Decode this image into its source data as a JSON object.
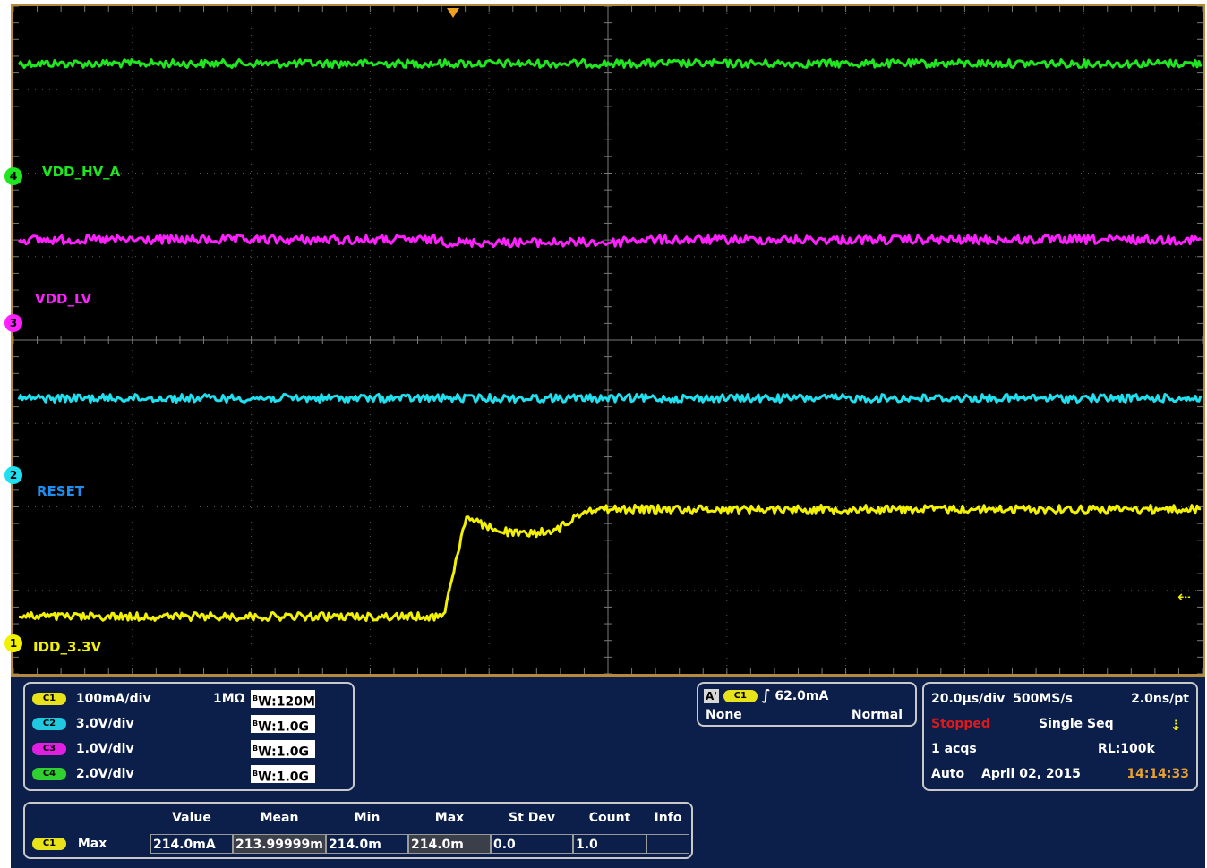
{
  "colors": {
    "ch1": "#f2f200",
    "ch2": "#20e0f0",
    "ch3": "#ff20ff",
    "ch4": "#20e620",
    "frame": "#b58a3c",
    "stopped": "#e01818",
    "time": "#e8a030"
  },
  "channels": [
    {
      "id": "C1",
      "pill": "C1",
      "label": "IDD_3.3V",
      "marker": "1",
      "scale": "100mA/div",
      "coupling": "1MΩ",
      "bw": "W:120M",
      "bw_prefix": "B",
      "color": "#f2f200"
    },
    {
      "id": "C2",
      "pill": "C2",
      "label": "RESET",
      "marker": "2",
      "scale": "3.0V/div",
      "coupling": "",
      "bw": "W:1.0G",
      "bw_prefix": "B",
      "color": "#20e0f0"
    },
    {
      "id": "C3",
      "pill": "C3",
      "label": "VDD_LV",
      "marker": "3",
      "scale": "1.0V/div",
      "coupling": "",
      "bw": "W:1.0G",
      "bw_prefix": "B",
      "color": "#ff20ff"
    },
    {
      "id": "C4",
      "pill": "C4",
      "label": "VDD_HV_A",
      "marker": "4",
      "scale": "2.0V/div",
      "coupling": "",
      "bw": "W:1.0G",
      "bw_prefix": "B",
      "color": "#20e620"
    }
  ],
  "trigger": {
    "source_badge": "A'",
    "channel": "C1",
    "level": "62.0mA",
    "mode_left": "None",
    "mode_right": "Normal"
  },
  "acquisition": {
    "timebase": "20.0µs/div",
    "sample_rate": "500MS/s",
    "resolution": "2.0ns/pt",
    "state": "Stopped",
    "mode": "Single Seq",
    "acqs": "1 acqs",
    "record_length": "RL:100k",
    "auto": "Auto",
    "date": "April 02, 2015",
    "time": "14:14:33"
  },
  "measurements": {
    "headers": [
      "Value",
      "Mean",
      "Min",
      "Max",
      "St Dev",
      "Count",
      "Info"
    ],
    "rows": [
      {
        "channel": "C1",
        "name": "Max",
        "values": [
          "214.0mA",
          "213.99999m",
          "214.0m",
          "214.0m",
          "0.0",
          "1.0",
          ""
        ]
      }
    ]
  }
}
